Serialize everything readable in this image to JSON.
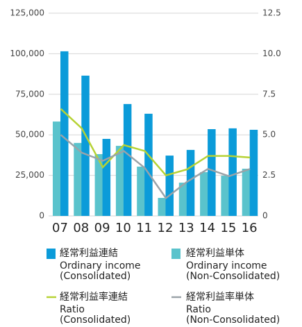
{
  "chart_data": {
    "type": "bar_line",
    "categories": [
      "07",
      "08",
      "09",
      "10",
      "11",
      "12",
      "13",
      "14",
      "15",
      "16"
    ],
    "series": [
      {
        "name": "経常利益連結",
        "label_en": [
          "Ordinary income",
          "(Consolidated)"
        ],
        "kind": "bar",
        "color": "#0b9bd9",
        "values": [
          101500,
          86500,
          47500,
          69000,
          63000,
          37200,
          40700,
          53500,
          54000,
          53100
        ]
      },
      {
        "name": "経常利益単体",
        "label_en": [
          "Ordinary income",
          "(Non-Consolidated)"
        ],
        "kind": "bar",
        "color": "#5ac3cc",
        "values": [
          58200,
          45000,
          38100,
          43200,
          30400,
          11100,
          20500,
          27000,
          24800,
          29100
        ]
      },
      {
        "name": "経常利益率連結",
        "label_en": [
          "Ratio",
          "(Consolidated)"
        ],
        "kind": "line",
        "axis": "y2",
        "color": "#b6d234",
        "values": [
          6.6,
          5.4,
          3.0,
          4.37,
          4.0,
          2.5,
          2.87,
          3.7,
          3.7,
          3.6
        ]
      },
      {
        "name": "経常利益率単体",
        "label_en": [
          "Ratio",
          "(Non-Consolidated)"
        ],
        "kind": "line",
        "axis": "y2",
        "color": "#9aa3a8",
        "values": [
          5.0,
          3.9,
          3.4,
          4.0,
          2.95,
          1.1,
          2.1,
          2.9,
          2.45,
          2.9
        ]
      }
    ],
    "ylim": [
      0,
      125000
    ],
    "yticks": [
      0,
      {
        "value": 25000,
        "label": "25,000"
      },
      {
        "value": 50000,
        "label": "50,000"
      },
      {
        "value": 75000,
        "label": "75,000"
      },
      {
        "value": 100000,
        "label": "100,000"
      },
      {
        "value": 125000,
        "label": "125,000"
      }
    ],
    "y2lim": [
      0,
      12.5
    ],
    "y2ticks": [
      0,
      2.5,
      {
        "value": 5,
        "label": "5.0"
      },
      7.5,
      {
        "value": 10,
        "label": "10.0"
      },
      12.5
    ],
    "grid": true
  }
}
